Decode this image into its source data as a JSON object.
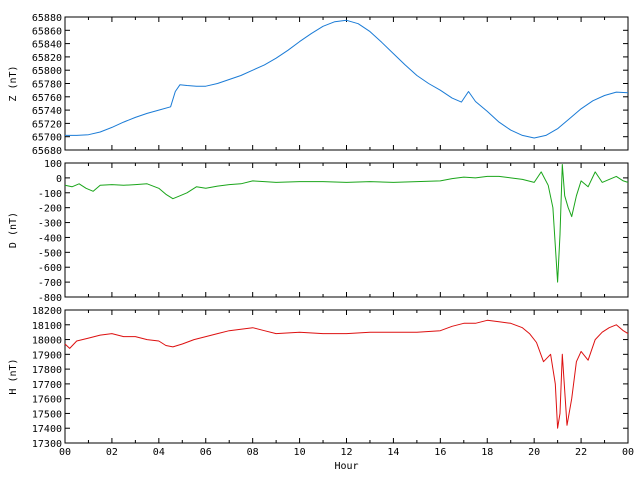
{
  "chart_data": [
    {
      "type": "line",
      "ylabel": "Z (nT)",
      "ylim": [
        65680,
        65880
      ],
      "yticks": [
        65680,
        65700,
        65720,
        65740,
        65760,
        65780,
        65800,
        65820,
        65840,
        65860,
        65880
      ],
      "xlim": [
        0,
        24
      ],
      "color": "#1a7bd6",
      "series": [
        {
          "x": [
            0,
            0.5,
            1,
            1.5,
            2,
            2.5,
            3,
            3.5,
            4,
            4.5,
            4.7,
            4.9,
            5.2,
            5.6,
            6,
            6.5,
            7,
            7.5,
            8,
            8.5,
            9,
            9.5,
            10,
            10.5,
            11,
            11.5,
            12,
            12.5,
            13,
            13.5,
            14,
            14.5,
            15,
            15.5,
            16,
            16.5,
            16.9,
            17.2,
            17.5,
            18,
            18.5,
            19,
            19.5,
            20,
            20.5,
            21,
            21.5,
            22,
            22.5,
            23,
            23.5,
            24
          ],
          "y": [
            65702,
            65702,
            65703,
            65707,
            65714,
            65722,
            65729,
            65735,
            65740,
            65745,
            65768,
            65778,
            65777,
            65776,
            65776,
            65780,
            65786,
            65792,
            65800,
            65808,
            65818,
            65830,
            65843,
            65855,
            65866,
            65873,
            65875,
            65870,
            65858,
            65842,
            65825,
            65808,
            65792,
            65780,
            65770,
            65758,
            65752,
            65768,
            65753,
            65738,
            65722,
            65710,
            65702,
            65698,
            65702,
            65712,
            65727,
            65742,
            65754,
            65762,
            65767,
            65766
          ]
        }
      ]
    },
    {
      "type": "line",
      "ylabel": "D (nT)",
      "ylim": [
        -800,
        100
      ],
      "yticks": [
        -800,
        -700,
        -600,
        -500,
        -400,
        -300,
        -200,
        -100,
        0,
        100
      ],
      "xlim": [
        0,
        24
      ],
      "color": "#1aa51a",
      "series": [
        {
          "x": [
            0,
            0.3,
            0.6,
            0.9,
            1.2,
            1.5,
            2,
            2.5,
            3,
            3.5,
            4,
            4.3,
            4.6,
            4.9,
            5.2,
            5.6,
            6,
            6.5,
            7,
            7.5,
            8,
            8.5,
            9,
            10,
            11,
            12,
            13,
            14,
            15,
            16,
            16.5,
            17,
            17.5,
            18,
            18.5,
            19,
            19.5,
            20,
            20.3,
            20.6,
            20.8,
            21,
            21.1,
            21.2,
            21.3,
            21.45,
            21.6,
            21.8,
            22,
            22.3,
            22.6,
            22.9,
            23.2,
            23.5,
            23.8,
            24
          ],
          "y": [
            -50,
            -60,
            -40,
            -70,
            -90,
            -50,
            -45,
            -50,
            -45,
            -40,
            -70,
            -110,
            -140,
            -120,
            -100,
            -60,
            -70,
            -55,
            -45,
            -40,
            -20,
            -25,
            -30,
            -25,
            -25,
            -30,
            -25,
            -30,
            -25,
            -20,
            -5,
            5,
            0,
            10,
            10,
            0,
            -10,
            -30,
            40,
            -50,
            -200,
            -700,
            -380,
            90,
            -120,
            -200,
            -260,
            -120,
            -20,
            -60,
            40,
            -30,
            -10,
            10,
            -20,
            -30
          ]
        }
      ]
    },
    {
      "type": "line",
      "ylabel": "H (nT)",
      "ylim": [
        17300,
        18200
      ],
      "yticks": [
        17300,
        17400,
        17500,
        17600,
        17700,
        17800,
        17900,
        18000,
        18100,
        18200
      ],
      "xlim": [
        0,
        24
      ],
      "xlabel": "Hour",
      "xticks": [
        "00",
        "02",
        "04",
        "06",
        "08",
        "10",
        "12",
        "14",
        "16",
        "18",
        "20",
        "22",
        "00"
      ],
      "color": "#dd1010",
      "series": [
        {
          "x": [
            0,
            0.2,
            0.5,
            1,
            1.5,
            2,
            2.5,
            3,
            3.5,
            4,
            4.3,
            4.6,
            5,
            5.5,
            6,
            6.5,
            7,
            7.5,
            8,
            8.5,
            9,
            10,
            11,
            12,
            13,
            14,
            15,
            16,
            16.5,
            17,
            17.5,
            18,
            18.5,
            19,
            19.5,
            19.8,
            20.1,
            20.4,
            20.7,
            20.9,
            21,
            21.1,
            21.2,
            21.4,
            21.6,
            21.8,
            22,
            22.3,
            22.6,
            22.9,
            23.2,
            23.5,
            23.8,
            24
          ],
          "y": [
            17970,
            17940,
            17990,
            18010,
            18030,
            18040,
            18020,
            18020,
            18000,
            17990,
            17960,
            17950,
            17970,
            18000,
            18020,
            18040,
            18060,
            18070,
            18080,
            18060,
            18040,
            18050,
            18040,
            18040,
            18050,
            18050,
            18050,
            18060,
            18090,
            18110,
            18110,
            18130,
            18120,
            18110,
            18080,
            18040,
            17980,
            17850,
            17900,
            17700,
            17400,
            17500,
            17900,
            17420,
            17600,
            17850,
            17920,
            17860,
            18000,
            18050,
            18080,
            18100,
            18060,
            18040
          ]
        }
      ]
    }
  ]
}
